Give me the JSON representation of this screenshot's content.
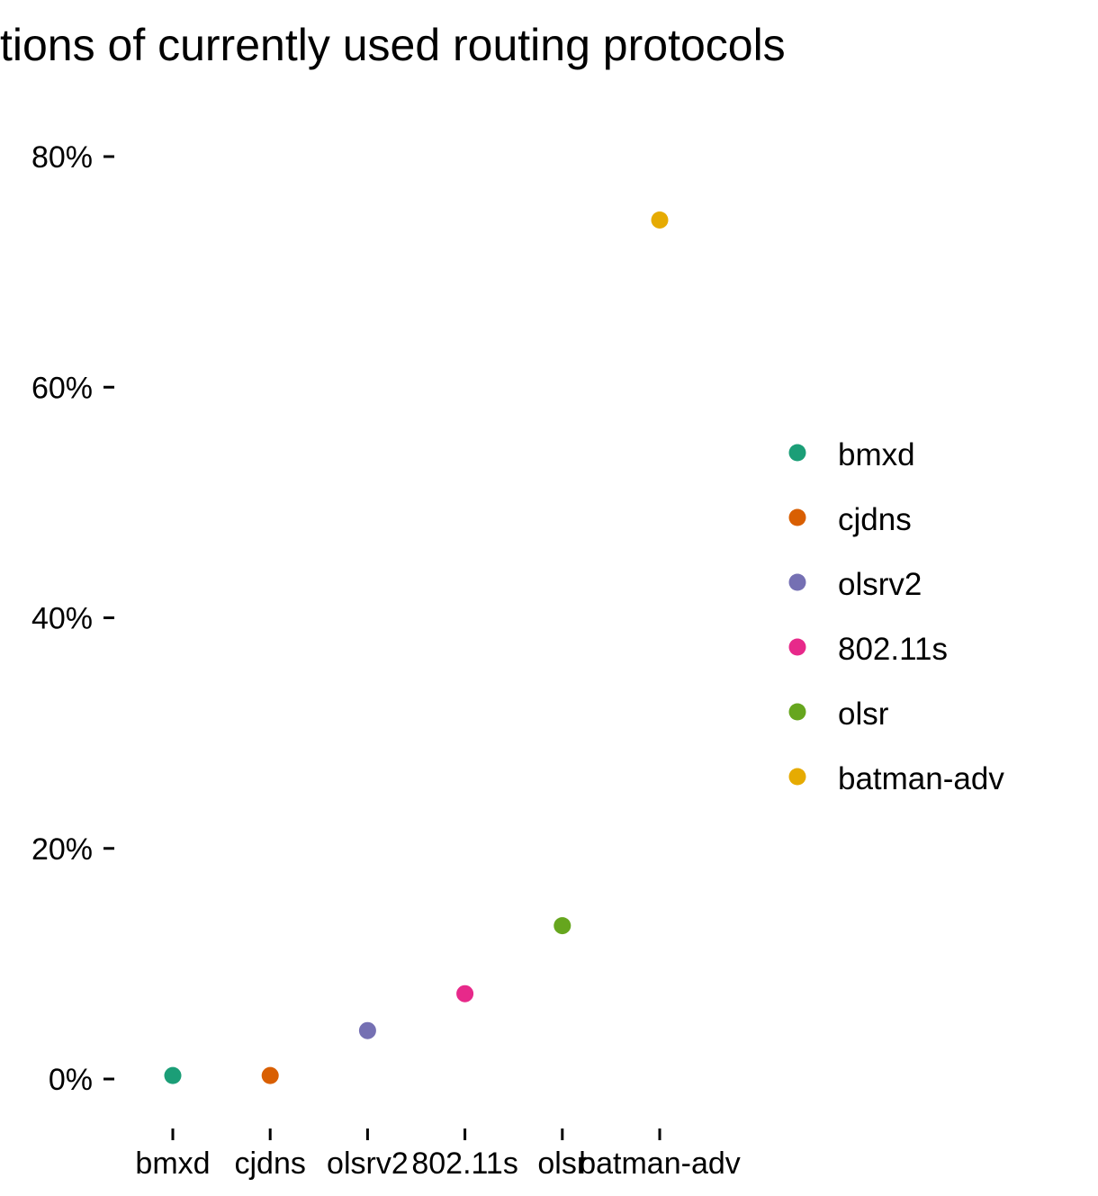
{
  "chart_data": {
    "type": "scatter",
    "title": "tions of currently used routing protocols",
    "xlabel": "",
    "ylabel": "",
    "categories": [
      "bmxd",
      "cjdns",
      "olsrv2",
      "802.11s",
      "olsr",
      "batman-adv"
    ],
    "values": [
      0.3,
      0.3,
      4.2,
      7.4,
      13.3,
      74.5
    ],
    "colors": [
      "#1b9e77",
      "#d95f02",
      "#7570b3",
      "#e7298a",
      "#66a61e",
      "#e6ab02"
    ],
    "y_ticks": [
      0,
      20,
      40,
      60,
      80
    ],
    "y_tick_labels": [
      "0%",
      "20%",
      "40%",
      "60%",
      "80%"
    ],
    "ylim": [
      0,
      80
    ],
    "grid": false,
    "legend": {
      "placement": "right",
      "entries": [
        "bmxd",
        "cjdns",
        "olsrv2",
        "802.11s",
        "olsr",
        "batman-adv"
      ]
    }
  }
}
